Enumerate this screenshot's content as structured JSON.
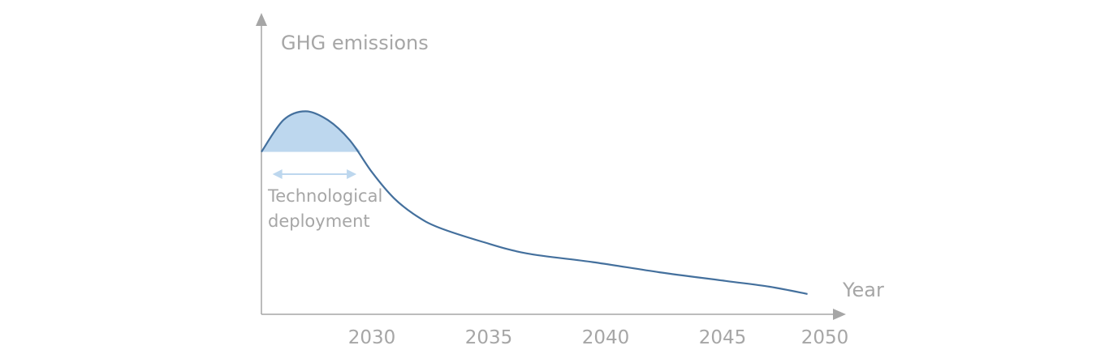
{
  "chart_data": {
    "type": "line",
    "ylabel": "GHG emissions",
    "xlabel": "Year",
    "x_ticks": [
      "2030",
      "2035",
      "2040",
      "2045",
      "2050"
    ],
    "xlim": [
      2025,
      2051
    ],
    "ylim": [
      0,
      1
    ],
    "grid": false,
    "series": [
      {
        "x": [
          2025,
          2026,
          2027,
          2028,
          2029,
          2030,
          2031,
          2032,
          2033,
          2035,
          2037,
          2040,
          2043,
          2046,
          2048,
          2049.7
        ],
        "y": [
          0.56,
          0.67,
          0.7,
          0.67,
          0.6,
          0.49,
          0.4,
          0.34,
          0.3,
          0.25,
          0.21,
          0.18,
          0.145,
          0.115,
          0.095,
          0.07
        ]
      }
    ],
    "shaded_region": {
      "x_start": 2025,
      "x_end": 2029.5,
      "color": "#bdd7ee"
    },
    "annotation": {
      "line1": "Technological",
      "line2": "deployment",
      "arrow_x_start": 2025.5,
      "arrow_x_end": 2029.3,
      "color": "#bdd7ee"
    },
    "line_color": "#44709d",
    "axis_color": "#a6a6a6"
  }
}
